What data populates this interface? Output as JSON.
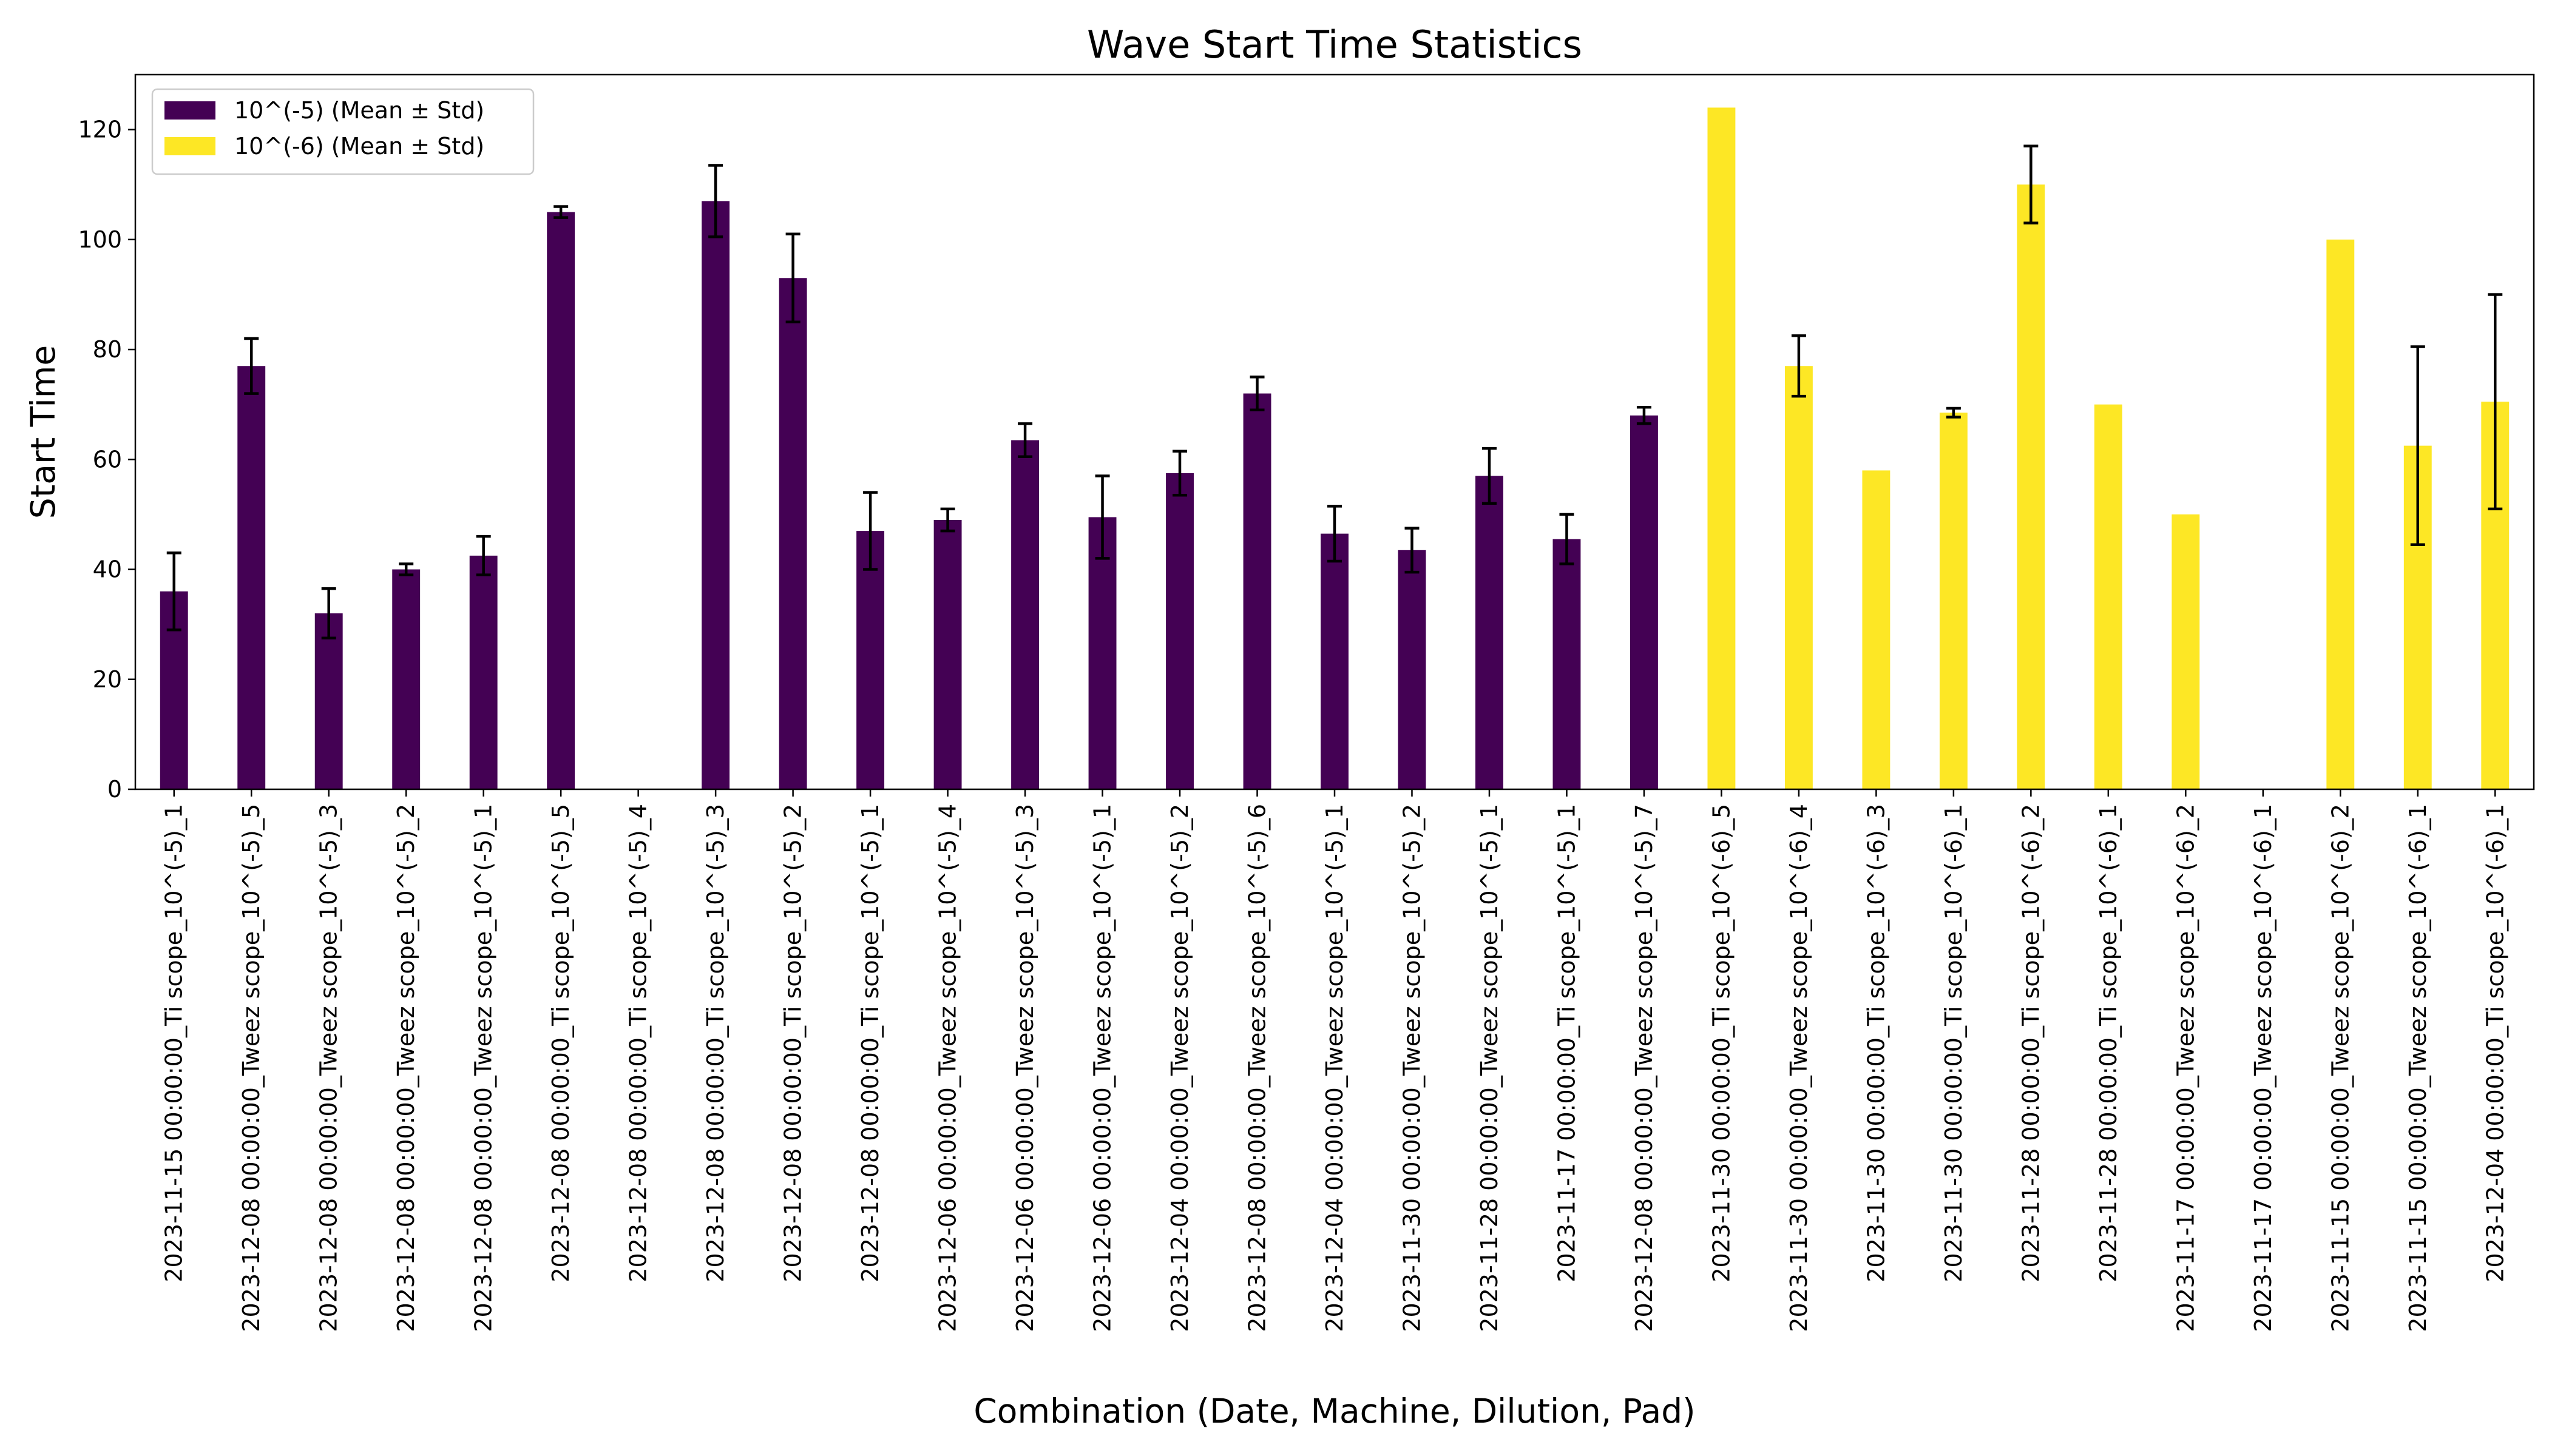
{
  "chart_data": {
    "type": "bar",
    "title": "Wave Start Time Statistics",
    "xlabel": "Combination (Date, Machine, Dilution, Pad)",
    "ylabel": "Start Time",
    "ylim": [
      0,
      130
    ],
    "yticks": [
      0,
      20,
      40,
      60,
      80,
      100,
      120
    ],
    "grid": false,
    "legend_position": "top-left",
    "categories": [
      "2023-11-15 00:00:00_Ti scope_10^(-5)_1",
      "2023-12-08 00:00:00_Tweez scope_10^(-5)_5",
      "2023-12-08 00:00:00_Tweez scope_10^(-5)_3",
      "2023-12-08 00:00:00_Tweez scope_10^(-5)_2",
      "2023-12-08 00:00:00_Tweez scope_10^(-5)_1",
      "2023-12-08 00:00:00_Ti scope_10^(-5)_5",
      "2023-12-08 00:00:00_Ti scope_10^(-5)_4",
      "2023-12-08 00:00:00_Ti scope_10^(-5)_3",
      "2023-12-08 00:00:00_Ti scope_10^(-5)_2",
      "2023-12-08 00:00:00_Ti scope_10^(-5)_1",
      "2023-12-06 00:00:00_Tweez scope_10^(-5)_4",
      "2023-12-06 00:00:00_Tweez scope_10^(-5)_3",
      "2023-12-06 00:00:00_Tweez scope_10^(-5)_1",
      "2023-12-04 00:00:00_Tweez scope_10^(-5)_2",
      "2023-12-08 00:00:00_Tweez scope_10^(-5)_6",
      "2023-12-04 00:00:00_Tweez scope_10^(-5)_1",
      "2023-11-30 00:00:00_Tweez scope_10^(-5)_2",
      "2023-11-28 00:00:00_Tweez scope_10^(-5)_1",
      "2023-11-17 00:00:00_Ti scope_10^(-5)_1",
      "2023-12-08 00:00:00_Tweez scope_10^(-5)_7",
      "2023-11-30 00:00:00_Ti scope_10^(-6)_5",
      "2023-11-30 00:00:00_Tweez scope_10^(-6)_4",
      "2023-11-30 00:00:00_Ti scope_10^(-6)_3",
      "2023-11-30 00:00:00_Ti scope_10^(-6)_1",
      "2023-11-28 00:00:00_Ti scope_10^(-6)_2",
      "2023-11-28 00:00:00_Ti scope_10^(-6)_1",
      "2023-11-17 00:00:00_Tweez scope_10^(-6)_2",
      "2023-11-17 00:00:00_Tweez scope_10^(-6)_1",
      "2023-11-15 00:00:00_Tweez scope_10^(-6)_2",
      "2023-11-15 00:00:00_Tweez scope_10^(-6)_1",
      "2023-12-04 00:00:00_Ti scope_10^(-6)_1"
    ],
    "series": [
      {
        "name": "10^(-5) (Mean ± Std)",
        "color": "#440154",
        "values": [
          36,
          77,
          32,
          40,
          42.5,
          105,
          null,
          107,
          93,
          47,
          49,
          63.5,
          49.5,
          57.5,
          72,
          46.5,
          43.5,
          57,
          45.5,
          68,
          null,
          null,
          null,
          null,
          null,
          null,
          null,
          null,
          null,
          null,
          null
        ],
        "errors": [
          7,
          5,
          4.5,
          1,
          3.5,
          1,
          null,
          6.5,
          8,
          7,
          2,
          3,
          7.5,
          4,
          3,
          5,
          4,
          5,
          4.5,
          1.5,
          null,
          null,
          null,
          null,
          null,
          null,
          null,
          null,
          null,
          null,
          null
        ]
      },
      {
        "name": "10^(-6) (Mean ± Std)",
        "color": "#fde725",
        "values": [
          null,
          null,
          null,
          null,
          null,
          null,
          null,
          null,
          null,
          null,
          null,
          null,
          null,
          null,
          null,
          null,
          null,
          null,
          null,
          null,
          124,
          77,
          58,
          68.5,
          110,
          70,
          50,
          null,
          100,
          62.5,
          70.5
        ],
        "errors": [
          null,
          null,
          null,
          null,
          null,
          null,
          null,
          null,
          null,
          null,
          null,
          null,
          null,
          null,
          null,
          null,
          null,
          null,
          null,
          null,
          null,
          5.5,
          null,
          0.8,
          7,
          null,
          null,
          null,
          null,
          18,
          19.5
        ]
      }
    ]
  }
}
